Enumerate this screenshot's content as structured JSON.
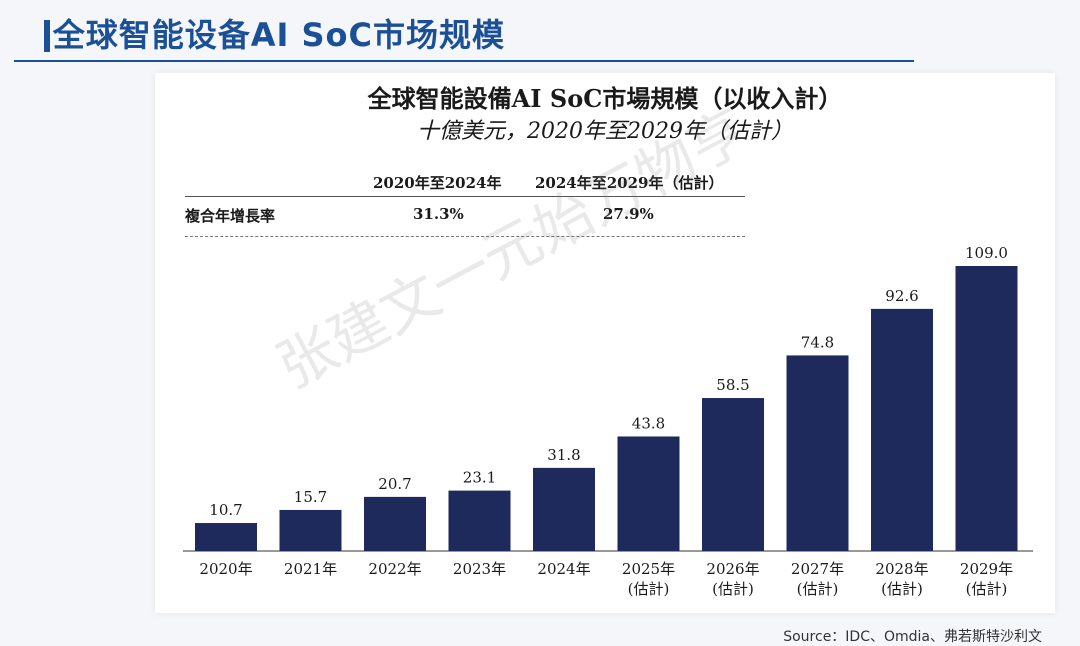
{
  "slide": {
    "title": "全球智能设备AI SoC市场规模",
    "source": "Source：IDC、Omdia、弗若斯特沙利文",
    "watermark": "张建文一元始万物亨"
  },
  "colors": {
    "bar": "#1f2a5c",
    "accent": "#1b4f96"
  },
  "cagr_table": {
    "row_label": "複合年增長率",
    "columns": [
      {
        "header": "2020年至2024年",
        "value": "31.3%"
      },
      {
        "header": "2024年至2029年（估計）",
        "value": "27.9%"
      }
    ]
  },
  "chart_data": {
    "type": "bar",
    "title": "全球智能設備AI SoC市場規模（以收入計）",
    "subtitle": "十億美元，2020年至2029年（估計）",
    "categories": [
      "2020年",
      "2021年",
      "2022年",
      "2023年",
      "2024年",
      "2025年\n(估計)",
      "2026年\n(估計)",
      "2027年\n(估計)",
      "2028年\n(估計)",
      "2029年\n(估計)"
    ],
    "values": [
      10.7,
      15.7,
      20.7,
      23.1,
      31.8,
      43.8,
      58.5,
      74.8,
      92.6,
      109.0
    ],
    "value_labels": [
      "10.7",
      "15.7",
      "20.7",
      "23.1",
      "31.8",
      "43.8",
      "58.5",
      "74.8",
      "92.6",
      "109.0"
    ],
    "xlabel": "",
    "ylabel": "",
    "ylim": [
      0,
      109.0
    ],
    "grid": false,
    "legend": "none"
  }
}
